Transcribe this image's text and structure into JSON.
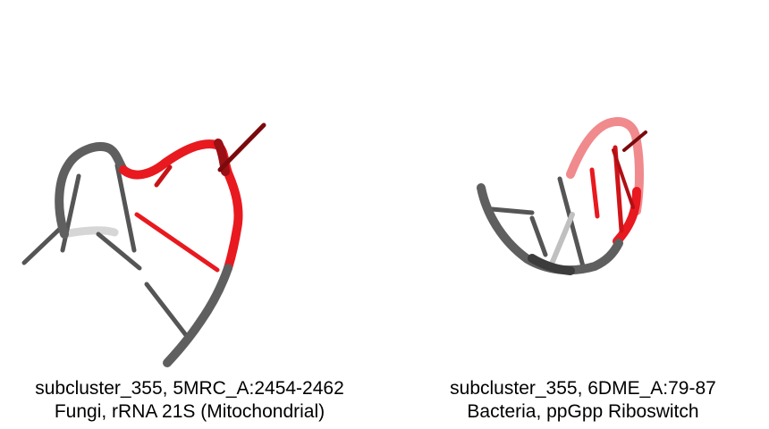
{
  "panels": [
    {
      "line1": "subcluster_355, 5MRC_A:2454-2462",
      "line2": "Fungi, rRNA 21S (Mitochondrial)"
    },
    {
      "line1": "subcluster_355, 6DME_A:79-87",
      "line2": "Bacteria, ppGpp Riboswitch"
    }
  ],
  "colors": {
    "backbone_gray": "#5f5f5f",
    "backbone_light": "#c8c8c8",
    "highlight_red": "#e8191f",
    "dark_red": "#8b0c10",
    "pink": "#f08a8c"
  }
}
